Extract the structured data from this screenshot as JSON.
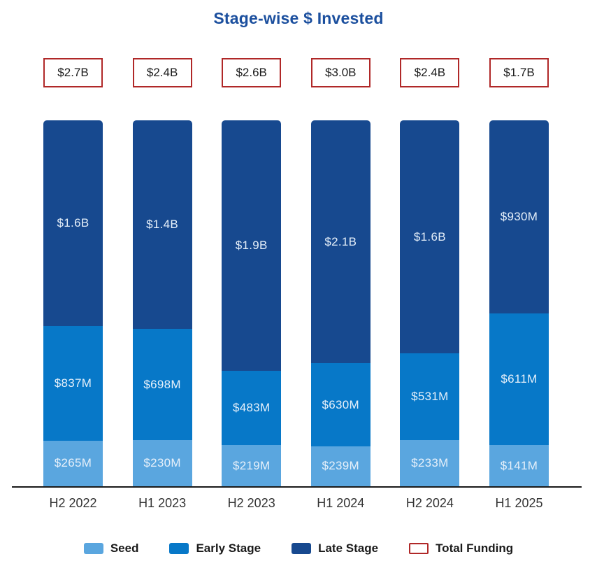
{
  "title": "Stage-wise $ Invested",
  "colors": {
    "title": "#1B4F9E",
    "seed": "#5AA6DF",
    "early": "#0778C8",
    "late": "#17498F",
    "total_border": "#B02828",
    "axis": "#1a1a1a",
    "segment_label": "#E6F0FA"
  },
  "chart_data": {
    "type": "bar",
    "stacked": true,
    "normalized_height": true,
    "units": "USD millions",
    "categories": [
      "H2 2022",
      "H1 2023",
      "H2 2023",
      "H1 2024",
      "H2 2024",
      "H1 2025"
    ],
    "totals": [
      "$2.7B",
      "$2.4B",
      "$2.6B",
      "$3.0B",
      "$2.4B",
      "$1.7B"
    ],
    "series": [
      {
        "name": "Seed",
        "color_key": "seed",
        "values": [
          265,
          230,
          219,
          239,
          233,
          141
        ],
        "labels": [
          "$265M",
          "$230M",
          "$219M",
          "$239M",
          "$233M",
          "$141M"
        ]
      },
      {
        "name": "Early Stage",
        "color_key": "early",
        "values": [
          837,
          698,
          483,
          630,
          531,
          611
        ],
        "labels": [
          "$837M",
          "$698M",
          "$483M",
          "$630M",
          "$531M",
          "$611M"
        ]
      },
      {
        "name": "Late Stage",
        "color_key": "late",
        "values": [
          1600,
          1400,
          1900,
          2100,
          1600,
          930
        ],
        "labels": [
          "$1.6B",
          "$1.4B",
          "$1.9B",
          "$2.1B",
          "$1.6B",
          "$930M"
        ]
      }
    ],
    "legend_position": "bottom",
    "grid": false
  },
  "legend": [
    {
      "label": "Seed",
      "color_key": "seed"
    },
    {
      "label": "Early Stage",
      "color_key": "early"
    },
    {
      "label": "Late Stage",
      "color_key": "late"
    },
    {
      "label": "Total Funding",
      "color_key": "total"
    }
  ]
}
